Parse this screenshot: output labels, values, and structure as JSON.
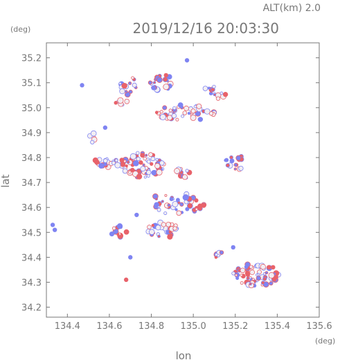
{
  "header": {
    "altitude_label": "ALT(km) 2.0",
    "timestamp": "2019/12/16 20:03:30",
    "ylabel_unit": "(deg)",
    "xlabel_unit": "(deg)"
  },
  "colors": {
    "axis": "#777777",
    "positive": "#e8626a",
    "negative": "#7f84f2",
    "neutral": "#f2eef3"
  },
  "chart_data": {
    "type": "scatter",
    "xlabel": "lon",
    "ylabel": "lat",
    "xlim": [
      134.3,
      135.6
    ],
    "ylim": [
      34.16,
      35.26
    ],
    "xticks": [
      134.4,
      134.6,
      134.8,
      135.0,
      135.2,
      135.4,
      135.6
    ],
    "xtick_labels": [
      "134.4",
      "134.6",
      "134.8",
      "135.0",
      "135.2",
      "135.4",
      "135.6"
    ],
    "yticks": [
      34.2,
      34.3,
      34.4,
      34.5,
      34.6,
      34.7,
      34.8,
      34.9,
      35.0,
      35.1,
      35.2
    ],
    "ytick_labels": [
      "34.2",
      "34.3",
      "34.4",
      "34.5",
      "34.6",
      "34.7",
      "34.8",
      "34.9",
      "35.0",
      "35.1",
      "35.2"
    ],
    "grid": false,
    "clusters": [
      {
        "lon": 135.3,
        "lat": 34.33,
        "rlon": 0.11,
        "rlat": 0.045,
        "n": 70
      },
      {
        "lon": 134.76,
        "lat": 34.77,
        "rlon": 0.1,
        "rlat": 0.05,
        "n": 70
      },
      {
        "lon": 134.6,
        "lat": 34.78,
        "rlon": 0.09,
        "rlat": 0.018,
        "n": 30
      },
      {
        "lon": 134.93,
        "lat": 34.62,
        "rlon": 0.13,
        "rlat": 0.05,
        "n": 45
      },
      {
        "lon": 134.86,
        "lat": 34.51,
        "rlon": 0.08,
        "rlat": 0.03,
        "n": 30
      },
      {
        "lon": 134.96,
        "lat": 34.98,
        "rlon": 0.14,
        "rlat": 0.035,
        "n": 45
      },
      {
        "lon": 135.1,
        "lat": 35.06,
        "rlon": 0.06,
        "rlat": 0.03,
        "n": 15
      },
      {
        "lon": 134.85,
        "lat": 35.1,
        "rlon": 0.07,
        "rlat": 0.03,
        "n": 22
      },
      {
        "lon": 134.69,
        "lat": 35.09,
        "rlon": 0.04,
        "rlat": 0.04,
        "n": 14
      },
      {
        "lon": 135.2,
        "lat": 34.78,
        "rlon": 0.05,
        "rlat": 0.03,
        "n": 15
      },
      {
        "lon": 134.95,
        "lat": 34.74,
        "rlon": 0.04,
        "rlat": 0.03,
        "n": 12
      },
      {
        "lon": 134.65,
        "lat": 34.5,
        "rlon": 0.04,
        "rlat": 0.025,
        "n": 12
      },
      {
        "lon": 134.52,
        "lat": 34.88,
        "rlon": 0.02,
        "rlat": 0.02,
        "n": 6
      },
      {
        "lon": 134.66,
        "lat": 35.02,
        "rlon": 0.03,
        "rlat": 0.01,
        "n": 6
      },
      {
        "lon": 135.12,
        "lat": 34.41,
        "rlon": 0.03,
        "rlat": 0.015,
        "n": 6
      }
    ],
    "points": [
      {
        "lon": 134.97,
        "lat": 35.19,
        "v": -1
      },
      {
        "lon": 134.33,
        "lat": 34.53,
        "v": -1
      },
      {
        "lon": 134.34,
        "lat": 34.51,
        "v": -1
      },
      {
        "lon": 134.68,
        "lat": 34.31,
        "v": 1
      },
      {
        "lon": 134.47,
        "lat": 35.09,
        "v": -1
      },
      {
        "lon": 135.38,
        "lat": 34.36,
        "v": 1
      },
      {
        "lon": 135.36,
        "lat": 34.36,
        "v": 1
      },
      {
        "lon": 135.26,
        "lat": 34.33,
        "v": 1
      },
      {
        "lon": 134.75,
        "lat": 34.78,
        "v": 1
      },
      {
        "lon": 134.71,
        "lat": 34.75,
        "v": 1
      },
      {
        "lon": 134.87,
        "lat": 35.13,
        "v": 1
      },
      {
        "lon": 134.73,
        "lat": 34.57,
        "v": -1
      },
      {
        "lon": 134.58,
        "lat": 34.92,
        "v": -1
      },
      {
        "lon": 134.7,
        "lat": 34.4,
        "v": -1
      },
      {
        "lon": 135.19,
        "lat": 34.44,
        "v": -1
      }
    ]
  }
}
